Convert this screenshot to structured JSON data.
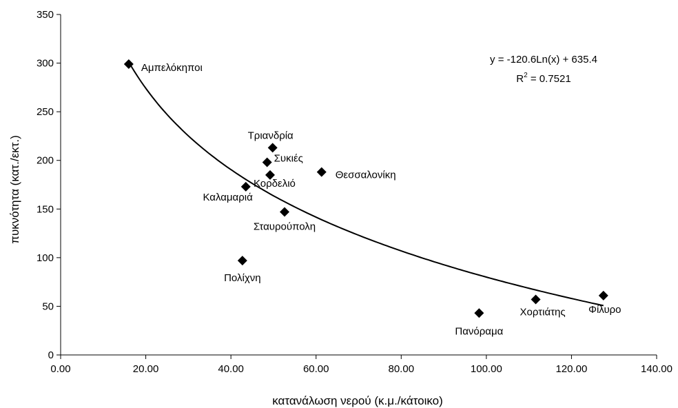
{
  "chart_data": {
    "type": "scatter",
    "title": "",
    "xlabel": "κατανάλωση νερού (κ.μ./κάτοικο)",
    "ylabel": "πυκνότητα (κατ./εκτ.)",
    "xlim": [
      0,
      140
    ],
    "ylim": [
      0,
      350
    ],
    "x_ticks": [
      "0.00",
      "20.00",
      "40.00",
      "60.00",
      "80.00",
      "100.00",
      "120.00",
      "140.00"
    ],
    "y_ticks": [
      "0",
      "50",
      "100",
      "150",
      "200",
      "250",
      "300",
      "350"
    ],
    "grid": false,
    "legend": "none",
    "marker": "diamond",
    "marker_color": "#000000",
    "points": [
      {
        "label": "Αμπελόκηποι",
        "x": 16.0,
        "y": 299
      },
      {
        "label": "Τριανδρία",
        "x": 49.8,
        "y": 213
      },
      {
        "label": "Συκιές",
        "x": 48.5,
        "y": 198
      },
      {
        "label": "Θεσσαλονίκη",
        "x": 61.3,
        "y": 188
      },
      {
        "label": "Κορδελιό",
        "x": 49.2,
        "y": 185
      },
      {
        "label": "Καλαμαριά",
        "x": 43.5,
        "y": 173
      },
      {
        "label": "Σταυρούπολη",
        "x": 52.6,
        "y": 147
      },
      {
        "label": "Πολίχνη",
        "x": 42.7,
        "y": 97
      },
      {
        "label": "Πανόραμα",
        "x": 98.3,
        "y": 43
      },
      {
        "label": "Χορτιάτης",
        "x": 111.6,
        "y": 57
      },
      {
        "label": "Φίλυρο",
        "x": 127.5,
        "y": 61
      }
    ],
    "trendline": {
      "type": "logarithmic",
      "a": -120.6,
      "b": 635.4,
      "x_range": [
        16.0,
        127.5
      ],
      "equation": "y = -120.6Ln(x) + 635.4",
      "r2_prefix": "R",
      "r2_sup": "2",
      "r2_suffix": " = 0.7521"
    }
  }
}
